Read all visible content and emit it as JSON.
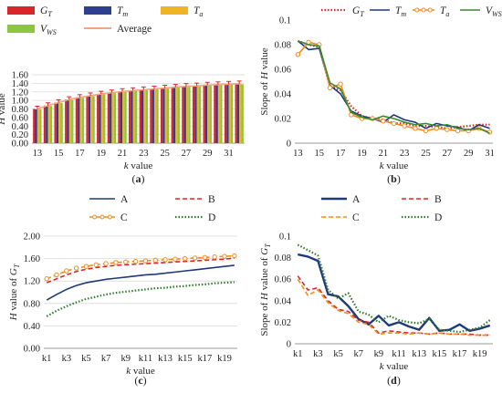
{
  "chart_data": [
    {
      "id": "a",
      "type": "bar",
      "panel_label": "(a)",
      "xlabel": "k value",
      "ylabel": "H value",
      "ylim": [
        0,
        1.6
      ],
      "yticks": [
        "0.00",
        "0.20",
        "0.40",
        "0.60",
        "0.80",
        "1.00",
        "1.20",
        "1.40",
        "1.60"
      ],
      "categories": [
        13,
        14,
        15,
        16,
        17,
        18,
        19,
        20,
        21,
        22,
        23,
        24,
        25,
        26,
        27,
        28,
        29,
        30,
        31,
        32
      ],
      "xticks": [
        13,
        15,
        17,
        19,
        21,
        23,
        25,
        27,
        29,
        31
      ],
      "legend_position": "top",
      "series": [
        {
          "name": "G_T",
          "color": "#d9262b",
          "values": [
            0.8,
            0.88,
            0.95,
            1.02,
            1.07,
            1.11,
            1.15,
            1.18,
            1.21,
            1.23,
            1.25,
            1.27,
            1.29,
            1.31,
            1.33,
            1.34,
            1.36,
            1.37,
            1.38,
            1.39
          ]
        },
        {
          "name": "T_m",
          "color": "#2e3f8f",
          "values": [
            0.79,
            0.87,
            0.94,
            1.01,
            1.06,
            1.1,
            1.14,
            1.17,
            1.2,
            1.22,
            1.24,
            1.26,
            1.28,
            1.3,
            1.32,
            1.33,
            1.35,
            1.36,
            1.37,
            1.38
          ]
        },
        {
          "name": "T_a",
          "color": "#f0b323",
          "values": [
            0.8,
            0.88,
            0.95,
            1.02,
            1.07,
            1.11,
            1.15,
            1.18,
            1.21,
            1.23,
            1.25,
            1.27,
            1.29,
            1.31,
            1.33,
            1.34,
            1.36,
            1.37,
            1.38,
            1.39
          ]
        },
        {
          "name": "V_WS",
          "color": "#8cc63f",
          "values": [
            0.79,
            0.87,
            0.94,
            1.01,
            1.06,
            1.1,
            1.14,
            1.17,
            1.2,
            1.22,
            1.24,
            1.26,
            1.28,
            1.3,
            1.32,
            1.33,
            1.35,
            1.36,
            1.37,
            1.38
          ]
        }
      ],
      "average": {
        "name": "Average",
        "color": "#f4a582",
        "values": [
          0.8,
          0.88,
          0.95,
          1.02,
          1.07,
          1.11,
          1.15,
          1.18,
          1.21,
          1.23,
          1.25,
          1.27,
          1.29,
          1.31,
          1.33,
          1.34,
          1.36,
          1.37,
          1.38,
          1.39
        ]
      }
    },
    {
      "id": "b",
      "type": "line",
      "panel_label": "(b)",
      "xlabel": "k value",
      "ylabel": "Slope of H value",
      "ylim": [
        0,
        0.1
      ],
      "yticks": [
        "0",
        "0.02",
        "0.04",
        "0.06",
        "0.08",
        "0.1"
      ],
      "x": [
        13,
        14,
        15,
        16,
        17,
        18,
        19,
        20,
        21,
        22,
        23,
        24,
        25,
        26,
        27,
        28,
        29,
        30,
        31
      ],
      "xticks": [
        13,
        15,
        17,
        19,
        21,
        23,
        25,
        27,
        29,
        31
      ],
      "legend_position": "top",
      "series": [
        {
          "name": "G_T",
          "color": "#d9262b",
          "style": "dotted",
          "values": [
            0.083,
            0.08,
            0.078,
            0.046,
            0.043,
            0.03,
            0.022,
            0.02,
            0.019,
            0.016,
            0.016,
            0.014,
            0.014,
            0.013,
            0.012,
            0.013,
            0.014,
            0.015,
            0.015
          ]
        },
        {
          "name": "T_m",
          "color": "#1f3a7a",
          "style": "solid",
          "values": [
            0.083,
            0.076,
            0.077,
            0.047,
            0.04,
            0.026,
            0.022,
            0.02,
            0.017,
            0.023,
            0.019,
            0.017,
            0.012,
            0.016,
            0.014,
            0.013,
            0.01,
            0.015,
            0.012
          ]
        },
        {
          "name": "T_a",
          "color": "#f08c1e",
          "style": "markers",
          "values": [
            0.072,
            0.082,
            0.08,
            0.045,
            0.048,
            0.023,
            0.02,
            0.02,
            0.018,
            0.016,
            0.014,
            0.012,
            0.01,
            0.012,
            0.011,
            0.01,
            0.01,
            0.012,
            0.009
          ]
        },
        {
          "name": "V_WS",
          "color": "#3a8a2e",
          "style": "solid",
          "values": [
            0.083,
            0.08,
            0.079,
            0.049,
            0.044,
            0.025,
            0.021,
            0.019,
            0.022,
            0.02,
            0.017,
            0.015,
            0.016,
            0.014,
            0.015,
            0.012,
            0.011,
            0.012,
            0.008
          ]
        }
      ]
    },
    {
      "id": "c",
      "type": "line",
      "panel_label": "(c)",
      "xlabel": "k value",
      "ylabel": "H value of G_T",
      "ylim": [
        0,
        2.0
      ],
      "yticks": [
        "0.00",
        "0.40",
        "0.80",
        "1.20",
        "1.60",
        "2.00"
      ],
      "x": [
        "k1",
        "k2",
        "k3",
        "k4",
        "k5",
        "k6",
        "k7",
        "k8",
        "k9",
        "k10",
        "k11",
        "k12",
        "k13",
        "k14",
        "k15",
        "k16",
        "k17",
        "k18",
        "k19",
        "k20"
      ],
      "xticks": [
        "k1",
        "k3",
        "k5",
        "k7",
        "k9",
        "k11",
        "k13",
        "k15",
        "k17",
        "k19"
      ],
      "legend_position": "top",
      "series": [
        {
          "name": "A",
          "color": "#1f3a7a",
          "style": "solid",
          "values": [
            0.86,
            0.96,
            1.05,
            1.12,
            1.17,
            1.2,
            1.23,
            1.25,
            1.27,
            1.29,
            1.31,
            1.32,
            1.34,
            1.36,
            1.38,
            1.4,
            1.42,
            1.44,
            1.46,
            1.48
          ]
        },
        {
          "name": "B",
          "color": "#d9262b",
          "style": "dashed",
          "values": [
            1.17,
            1.24,
            1.31,
            1.37,
            1.41,
            1.44,
            1.46,
            1.48,
            1.49,
            1.5,
            1.51,
            1.52,
            1.53,
            1.54,
            1.55,
            1.56,
            1.57,
            1.58,
            1.59,
            1.61
          ]
        },
        {
          "name": "C",
          "color": "#f08c1e",
          "style": "dashed-markers",
          "values": [
            1.24,
            1.31,
            1.38,
            1.43,
            1.46,
            1.49,
            1.51,
            1.53,
            1.54,
            1.55,
            1.56,
            1.57,
            1.58,
            1.59,
            1.6,
            1.61,
            1.62,
            1.63,
            1.64,
            1.65
          ]
        },
        {
          "name": "D",
          "color": "#2f7a2a",
          "style": "dotted",
          "values": [
            0.57,
            0.67,
            0.75,
            0.82,
            0.88,
            0.92,
            0.96,
            0.99,
            1.01,
            1.03,
            1.05,
            1.07,
            1.08,
            1.1,
            1.11,
            1.13,
            1.14,
            1.16,
            1.17,
            1.18
          ]
        }
      ]
    },
    {
      "id": "d",
      "type": "line",
      "panel_label": "(d)",
      "xlabel": "k value",
      "ylabel": "Slope of H value of G_T",
      "ylim": [
        0,
        0.1
      ],
      "yticks": [
        "0",
        "0.02",
        "0.04",
        "0.06",
        "0.08",
        "0.1"
      ],
      "x": [
        "k1",
        "k2",
        "k3",
        "k4",
        "k5",
        "k6",
        "k7",
        "k8",
        "k9",
        "k10",
        "k11",
        "k12",
        "k13",
        "k14",
        "k15",
        "k16",
        "k17",
        "k18",
        "k19",
        "k20"
      ],
      "xticks": [
        "k1",
        "k3",
        "k5",
        "k7",
        "k9",
        "k11",
        "k13",
        "k15",
        "k17",
        "k19"
      ],
      "legend_position": "top",
      "series": [
        {
          "name": "A",
          "color": "#1f3a7a",
          "style": "solid-thick",
          "values": [
            0.083,
            0.081,
            0.077,
            0.046,
            0.044,
            0.035,
            0.023,
            0.018,
            0.026,
            0.017,
            0.02,
            0.016,
            0.013,
            0.024,
            0.012,
            0.013,
            0.018,
            0.012,
            0.014,
            0.017
          ]
        },
        {
          "name": "B",
          "color": "#d9262b",
          "style": "dashed",
          "values": [
            0.063,
            0.05,
            0.052,
            0.04,
            0.032,
            0.03,
            0.022,
            0.02,
            0.01,
            0.012,
            0.011,
            0.01,
            0.01,
            0.009,
            0.01,
            0.009,
            0.009,
            0.009,
            0.008,
            0.008
          ]
        },
        {
          "name": "C",
          "color": "#f08c1e",
          "style": "dashed",
          "values": [
            0.06,
            0.045,
            0.05,
            0.038,
            0.031,
            0.028,
            0.02,
            0.018,
            0.009,
            0.01,
            0.01,
            0.009,
            0.01,
            0.009,
            0.01,
            0.009,
            0.009,
            0.008,
            0.008,
            0.008
          ]
        },
        {
          "name": "D",
          "color": "#2f7a2a",
          "style": "dotted",
          "values": [
            0.092,
            0.087,
            0.082,
            0.05,
            0.042,
            0.047,
            0.03,
            0.027,
            0.02,
            0.026,
            0.022,
            0.02,
            0.019,
            0.023,
            0.013,
            0.012,
            0.011,
            0.013,
            0.015,
            0.022
          ]
        }
      ]
    }
  ]
}
